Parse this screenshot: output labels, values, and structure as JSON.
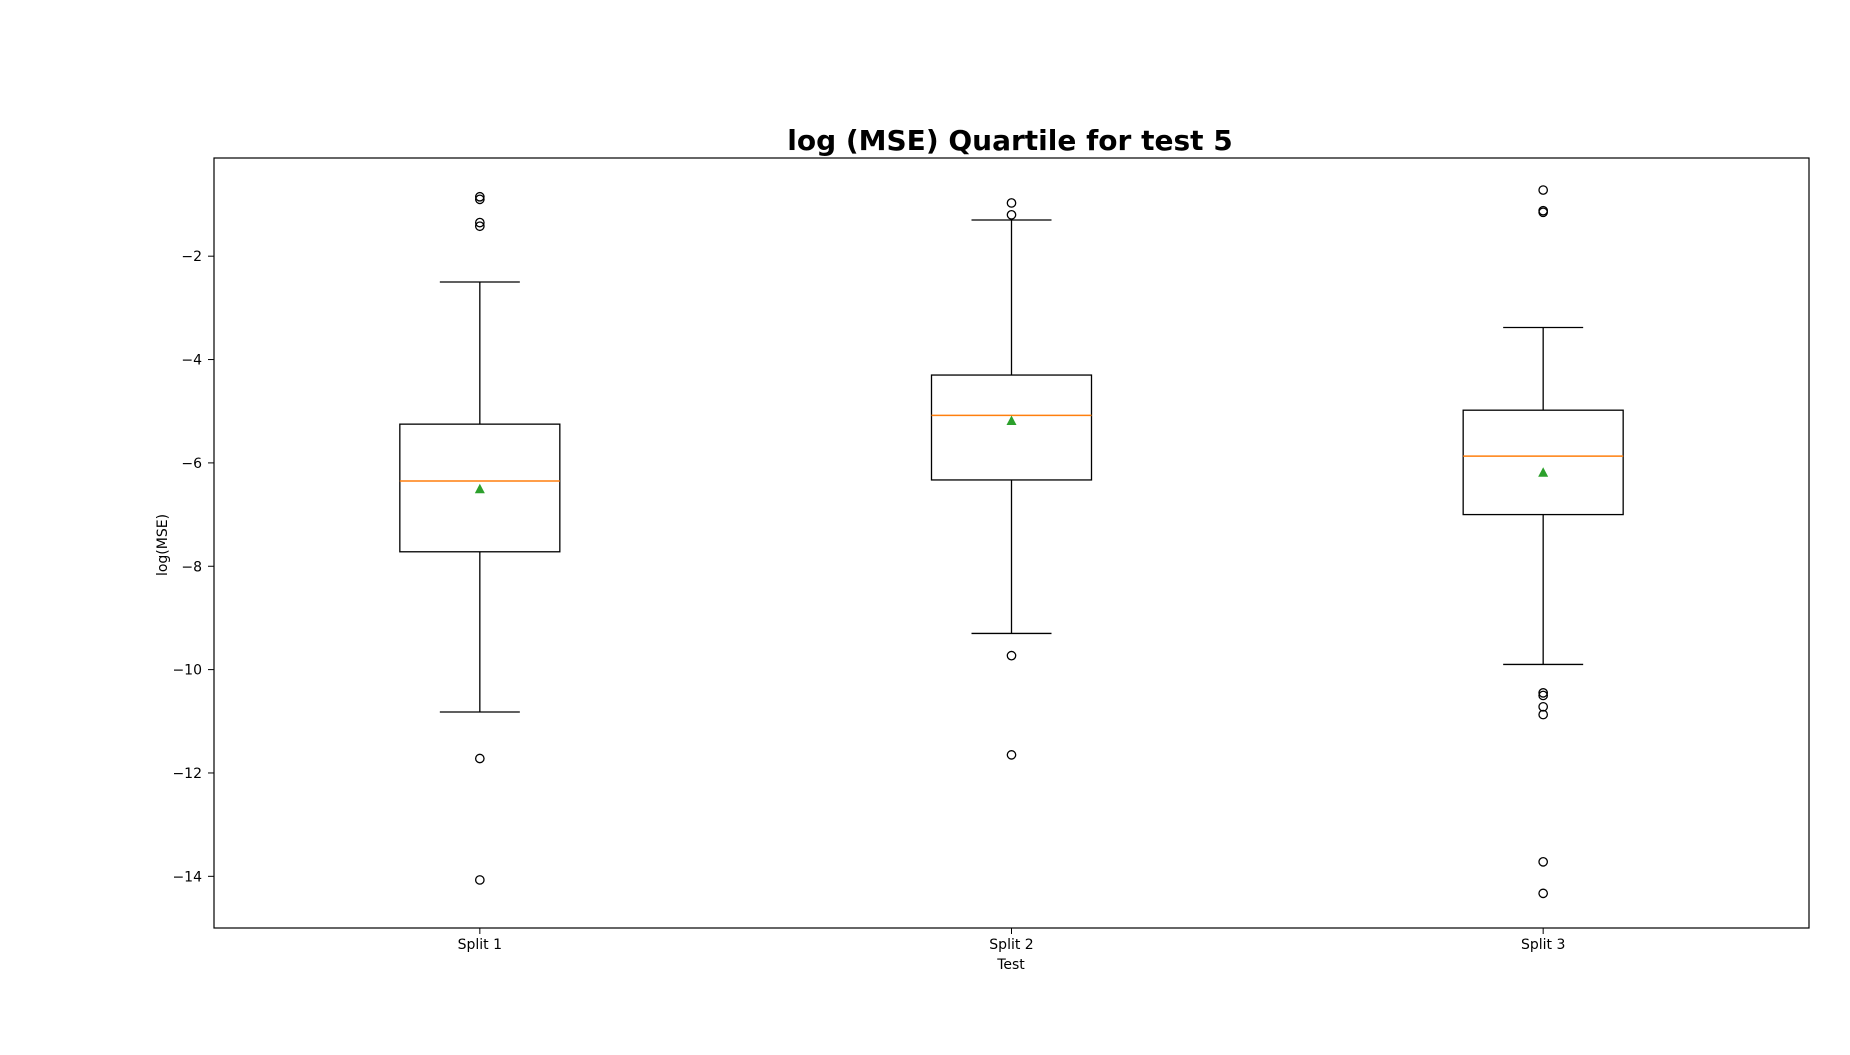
{
  "chart_data": {
    "type": "box",
    "title": "log (MSE) Quartile for test 5",
    "xlabel": "Test",
    "ylabel": "log(MSE)",
    "ylim": [
      -15.0,
      -0.1
    ],
    "yticks": [
      -2,
      -4,
      -6,
      -8,
      -10,
      -12,
      -14
    ],
    "ytick_labels": [
      "−2",
      "−4",
      "−6",
      "−8",
      "−10",
      "−12",
      "−14"
    ],
    "categories": [
      "Split 1",
      "Split 2",
      "Split 3"
    ],
    "boxes": [
      {
        "label": "Split 1",
        "whisker_high": -2.5,
        "q3": -5.25,
        "median": -6.35,
        "mean": -6.5,
        "q1": -7.72,
        "whisker_low": -10.82,
        "outliers": [
          -0.85,
          -0.9,
          -1.35,
          -1.42,
          -11.72,
          -14.07
        ]
      },
      {
        "label": "Split 2",
        "whisker_high": -1.3,
        "q3": -4.3,
        "median": -5.08,
        "mean": -5.18,
        "q1": -6.33,
        "whisker_low": -9.3,
        "outliers": [
          -0.97,
          -1.2,
          -9.73,
          -11.65
        ]
      },
      {
        "label": "Split 3",
        "whisker_high": -3.38,
        "q3": -4.98,
        "median": -5.87,
        "mean": -6.18,
        "q1": -7.0,
        "whisker_low": -9.9,
        "outliers": [
          -0.72,
          -1.12,
          -1.15,
          -10.45,
          -10.5,
          -10.72,
          -10.87,
          -13.72,
          -14.33
        ]
      }
    ],
    "colors": {
      "box": "#000000",
      "median": "#ff7f0e",
      "mean": "#2ca02c"
    }
  }
}
